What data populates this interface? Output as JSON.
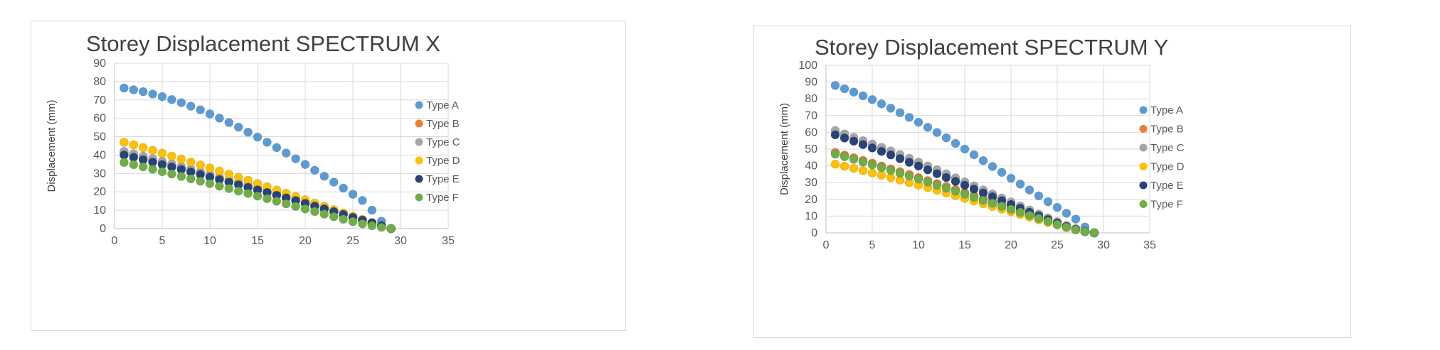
{
  "chart_data": [
    {
      "type": "scatter",
      "title": "Storey Displacement SPECTRUM X",
      "xlabel": "",
      "ylabel": "Displacement (mm)",
      "xlim": [
        0,
        35
      ],
      "ylim": [
        0,
        90
      ],
      "xticks": [
        0,
        5,
        10,
        15,
        20,
        25,
        30,
        35
      ],
      "yticks": [
        0,
        10,
        20,
        30,
        40,
        50,
        60,
        70,
        80,
        90
      ],
      "grid": {
        "horizontal": true,
        "vertical": true
      },
      "legend": "right",
      "series": [
        {
          "name": "Type A",
          "color": "#5b9bd5",
          "x": [
            1,
            2,
            3,
            4,
            5,
            6,
            7,
            8,
            9,
            10,
            11,
            12,
            13,
            14,
            15,
            16,
            17,
            18,
            19,
            20,
            21,
            22,
            23,
            24,
            25,
            26,
            27,
            28
          ],
          "y": [
            76.5,
            75.5,
            74.5,
            73.2,
            71.8,
            70.2,
            68.5,
            66.6,
            64.6,
            62.4,
            60.1,
            57.7,
            55.2,
            52.5,
            49.8,
            47,
            44.1,
            41.1,
            38,
            34.9,
            31.7,
            28.5,
            25.3,
            22,
            18.7,
            15.3,
            10,
            4
          ]
        },
        {
          "name": "Type B",
          "color": "#ed7d31",
          "x": [
            1,
            2,
            3,
            4,
            5,
            6,
            7,
            8,
            9,
            10,
            11,
            12,
            13,
            14,
            15,
            16,
            17,
            18,
            19,
            20,
            21,
            22,
            23,
            24,
            25,
            26,
            27,
            28,
            29
          ],
          "y": [
            41,
            39.7,
            38.4,
            37,
            35.6,
            34.2,
            32.8,
            31.4,
            30,
            28.6,
            27.1,
            25.7,
            24.2,
            22.8,
            21.3,
            19.8,
            18.3,
            16.8,
            15.3,
            13.8,
            12.3,
            10.8,
            9.3,
            7.8,
            6.2,
            4.7,
            3.2,
            1.6,
            0
          ]
        },
        {
          "name": "Type C",
          "color": "#a5a5a5",
          "x": [
            1,
            2,
            3,
            4,
            5,
            6,
            7,
            8,
            9,
            10,
            11,
            12,
            13,
            14,
            15,
            16,
            17,
            18,
            19,
            20,
            21,
            22,
            23,
            24,
            25,
            26,
            27,
            28,
            29
          ],
          "y": [
            42,
            40.7,
            39.4,
            38,
            36.6,
            35.2,
            33.8,
            32.4,
            30.9,
            29.5,
            28,
            26.5,
            25,
            23.5,
            22,
            20.5,
            19,
            17.5,
            16,
            14.4,
            12.8,
            11.2,
            9.6,
            8,
            6.4,
            4.8,
            3.2,
            1.6,
            0
          ]
        },
        {
          "name": "Type D",
          "color": "#ffc000",
          "x": [
            1,
            2,
            3,
            4,
            5,
            6,
            7,
            8,
            9,
            10,
            11,
            12,
            13,
            14,
            15,
            16,
            17,
            18,
            19,
            20,
            21,
            22,
            23,
            24,
            25,
            26,
            27,
            28,
            29
          ],
          "y": [
            47,
            45.6,
            44.1,
            42.6,
            41,
            39.4,
            37.8,
            36.2,
            34.6,
            33,
            31.3,
            29.6,
            27.9,
            26.2,
            24.5,
            22.8,
            21,
            19.2,
            17.5,
            15.7,
            13.9,
            12.1,
            10.3,
            8.5,
            6.7,
            4.9,
            3.2,
            1.5,
            0
          ]
        },
        {
          "name": "Type E",
          "color": "#264478",
          "x": [
            1,
            2,
            3,
            4,
            5,
            6,
            7,
            8,
            9,
            10,
            11,
            12,
            13,
            14,
            15,
            16,
            17,
            18,
            19,
            20,
            21,
            22,
            23,
            24,
            25,
            26,
            27,
            28,
            29
          ],
          "y": [
            40,
            38.7,
            37.4,
            36.1,
            34.8,
            33.5,
            32.1,
            30.8,
            29.4,
            28,
            26.6,
            25.2,
            23.8,
            22.4,
            21,
            19.6,
            18.1,
            16.7,
            15.2,
            13.7,
            12.2,
            10.7,
            9.2,
            7.7,
            6.1,
            4.6,
            3.1,
            1.5,
            0
          ]
        },
        {
          "name": "Type F",
          "color": "#70ad47",
          "x": [
            1,
            2,
            3,
            4,
            5,
            6,
            7,
            8,
            9,
            10,
            11,
            12,
            13,
            14,
            15,
            16,
            17,
            18,
            19,
            20,
            21,
            22,
            23,
            24,
            25,
            26,
            27,
            28,
            29
          ],
          "y": [
            36,
            34.8,
            33.6,
            32.3,
            31,
            29.7,
            28.4,
            27.1,
            25.8,
            24.5,
            23.1,
            21.8,
            20.4,
            19.1,
            17.7,
            16.3,
            14.9,
            13.5,
            12.1,
            10.7,
            9.3,
            7.9,
            6.5,
            5.1,
            3.8,
            2.6,
            1.6,
            0.7,
            0
          ]
        }
      ]
    },
    {
      "type": "scatter",
      "title": "Storey Displacement SPECTRUM Y",
      "xlabel": "",
      "ylabel": "Displacement (mm)",
      "xlim": [
        0,
        35
      ],
      "ylim": [
        0,
        100
      ],
      "xticks": [
        0,
        5,
        10,
        15,
        20,
        25,
        30,
        35
      ],
      "yticks": [
        0,
        10,
        20,
        30,
        40,
        50,
        60,
        70,
        80,
        90,
        100
      ],
      "grid": {
        "horizontal": true,
        "vertical": true
      },
      "legend": "right",
      "series": [
        {
          "name": "Type A",
          "color": "#5b9bd5",
          "x": [
            1,
            2,
            3,
            4,
            5,
            6,
            7,
            8,
            9,
            10,
            11,
            12,
            13,
            14,
            15,
            16,
            17,
            18,
            19,
            20,
            21,
            22,
            23,
            24,
            25,
            26,
            27,
            28,
            29
          ],
          "y": [
            88,
            86,
            84,
            81.8,
            79.5,
            77,
            74.4,
            71.7,
            68.9,
            66,
            63,
            59.9,
            56.7,
            53.4,
            50,
            46.6,
            43.1,
            39.6,
            36.1,
            32.6,
            29.1,
            25.6,
            22.1,
            18.6,
            15.2,
            11.7,
            8.2,
            3.5,
            0
          ]
        },
        {
          "name": "Type B",
          "color": "#ed7d31",
          "x": [
            1,
            2,
            3,
            4,
            5,
            6,
            7,
            8,
            9,
            10,
            11,
            12,
            13,
            14,
            15,
            16,
            17,
            18,
            19,
            20,
            21,
            22,
            23,
            24,
            25,
            26,
            27,
            28,
            29
          ],
          "y": [
            48,
            46.4,
            44.8,
            43.2,
            41.6,
            39.9,
            38.2,
            36.5,
            34.8,
            33,
            31.2,
            29.4,
            27.6,
            25.8,
            24,
            22.2,
            20.4,
            18.6,
            16.8,
            15,
            13.1,
            11.3,
            9.5,
            7.7,
            5.9,
            4.1,
            2.4,
            0.8,
            0
          ]
        },
        {
          "name": "Type C",
          "color": "#a5a5a5",
          "x": [
            1,
            2,
            3,
            4,
            5,
            6,
            7,
            8,
            9,
            10,
            11,
            12,
            13,
            14,
            15,
            16,
            17,
            18,
            19,
            20,
            21,
            22,
            23,
            24,
            25,
            26,
            27,
            28,
            29
          ],
          "y": [
            61,
            59,
            57,
            55,
            53,
            51,
            48.9,
            46.7,
            44.5,
            42.2,
            39.9,
            37.6,
            35.2,
            32.8,
            30.4,
            28,
            25.6,
            23.2,
            20.8,
            18.4,
            16,
            13.6,
            11.2,
            8.9,
            6.6,
            4.4,
            2.5,
            1,
            0
          ]
        },
        {
          "name": "Type D",
          "color": "#ffc000",
          "x": [
            1,
            2,
            3,
            4,
            5,
            6,
            7,
            8,
            9,
            10,
            11,
            12,
            13,
            14,
            15,
            16,
            17,
            18,
            19,
            20,
            21,
            22,
            23,
            24,
            25,
            26,
            27,
            28,
            29
          ],
          "y": [
            41,
            39.8,
            38.5,
            37.2,
            35.8,
            34.4,
            33,
            31.5,
            30,
            28.5,
            27,
            25.4,
            23.8,
            22.2,
            20.6,
            19,
            17.4,
            15.8,
            14.2,
            12.6,
            11,
            9.4,
            7.8,
            6.2,
            4.7,
            3.2,
            1.8,
            0.7,
            0
          ]
        },
        {
          "name": "Type E",
          "color": "#264478",
          "x": [
            1,
            2,
            3,
            4,
            5,
            6,
            7,
            8,
            9,
            10,
            11,
            12,
            13,
            14,
            15,
            16,
            17,
            18,
            19,
            20,
            21,
            22,
            23,
            24,
            25,
            26,
            27,
            28,
            29
          ],
          "y": [
            58.5,
            56.6,
            54.7,
            52.7,
            50.7,
            48.6,
            46.5,
            44.3,
            42.1,
            39.9,
            37.6,
            35.3,
            33,
            30.7,
            28.4,
            26.1,
            23.8,
            21.5,
            19.2,
            16.9,
            14.6,
            12.3,
            10.1,
            7.9,
            5.8,
            3.8,
            2.1,
            0.8,
            0
          ]
        },
        {
          "name": "Type F",
          "color": "#70ad47",
          "x": [
            1,
            2,
            3,
            4,
            5,
            6,
            7,
            8,
            9,
            10,
            11,
            12,
            13,
            14,
            15,
            16,
            17,
            18,
            19,
            20,
            21,
            22,
            23,
            24,
            25,
            26,
            27,
            28,
            29
          ],
          "y": [
            47,
            45.5,
            43.9,
            42.3,
            40.7,
            39,
            37.3,
            35.6,
            33.9,
            32.1,
            30.3,
            28.5,
            26.7,
            24.9,
            23.1,
            21.3,
            19.5,
            17.7,
            15.9,
            14.1,
            12.3,
            10.5,
            8.7,
            6.9,
            5.1,
            3.4,
            1.9,
            0.7,
            0
          ]
        }
      ]
    }
  ]
}
